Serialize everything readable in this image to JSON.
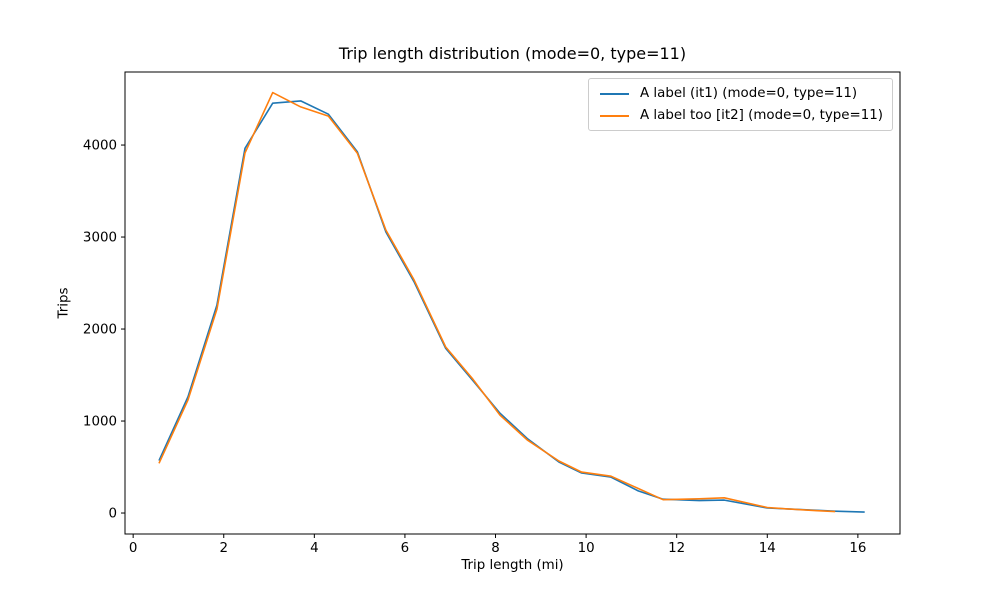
{
  "chart_data": {
    "type": "line",
    "title": "Trip length distribution (mode=0, type=11)",
    "xlabel": "Trip length (mi)",
    "ylabel": "Trips",
    "xlim": [
      -0.18,
      16.93
    ],
    "ylim": [
      -228,
      4794
    ],
    "x_ticks": [
      0,
      2,
      4,
      6,
      8,
      10,
      12,
      14,
      16
    ],
    "y_ticks": [
      0,
      1000,
      2000,
      3000,
      4000
    ],
    "grid": false,
    "legend": {
      "position": "upper right",
      "entries": [
        "A label (it1) (mode=0, type=11)",
        "A label too [it2] (mode=0, type=11)"
      ]
    },
    "series": [
      {
        "name": "A label (it1) (mode=0, type=11)",
        "color": "#1f77b4",
        "x": [
          0.57,
          1.21,
          1.85,
          2.47,
          3.08,
          3.7,
          4.31,
          4.95,
          5.58,
          6.2,
          6.9,
          7.5,
          8.1,
          8.7,
          9.4,
          9.9,
          10.55,
          11.15,
          11.7,
          12.5,
          13.05,
          14.0,
          14.45,
          15.1,
          15.5,
          16.15
        ],
        "y": [
          570,
          1265,
          2260,
          3965,
          4455,
          4480,
          4335,
          3925,
          3055,
          2515,
          1790,
          1440,
          1085,
          810,
          555,
          435,
          390,
          240,
          150,
          135,
          140,
          55,
          45,
          30,
          20,
          10
        ]
      },
      {
        "name": "A label too [it2] (mode=0, type=11)",
        "color": "#ff7f0e",
        "x": [
          0.57,
          1.21,
          1.85,
          2.47,
          3.08,
          3.7,
          4.31,
          4.95,
          5.58,
          6.2,
          6.9,
          7.5,
          8.1,
          8.7,
          9.4,
          9.9,
          10.55,
          11.7,
          12.5,
          13.05,
          14.0,
          14.45,
          15.1,
          15.5
        ],
        "y": [
          540,
          1230,
          2215,
          3915,
          4570,
          4415,
          4315,
          3910,
          3075,
          2535,
          1805,
          1455,
          1065,
          795,
          565,
          445,
          400,
          145,
          155,
          165,
          60,
          45,
          25,
          15
        ]
      }
    ]
  }
}
